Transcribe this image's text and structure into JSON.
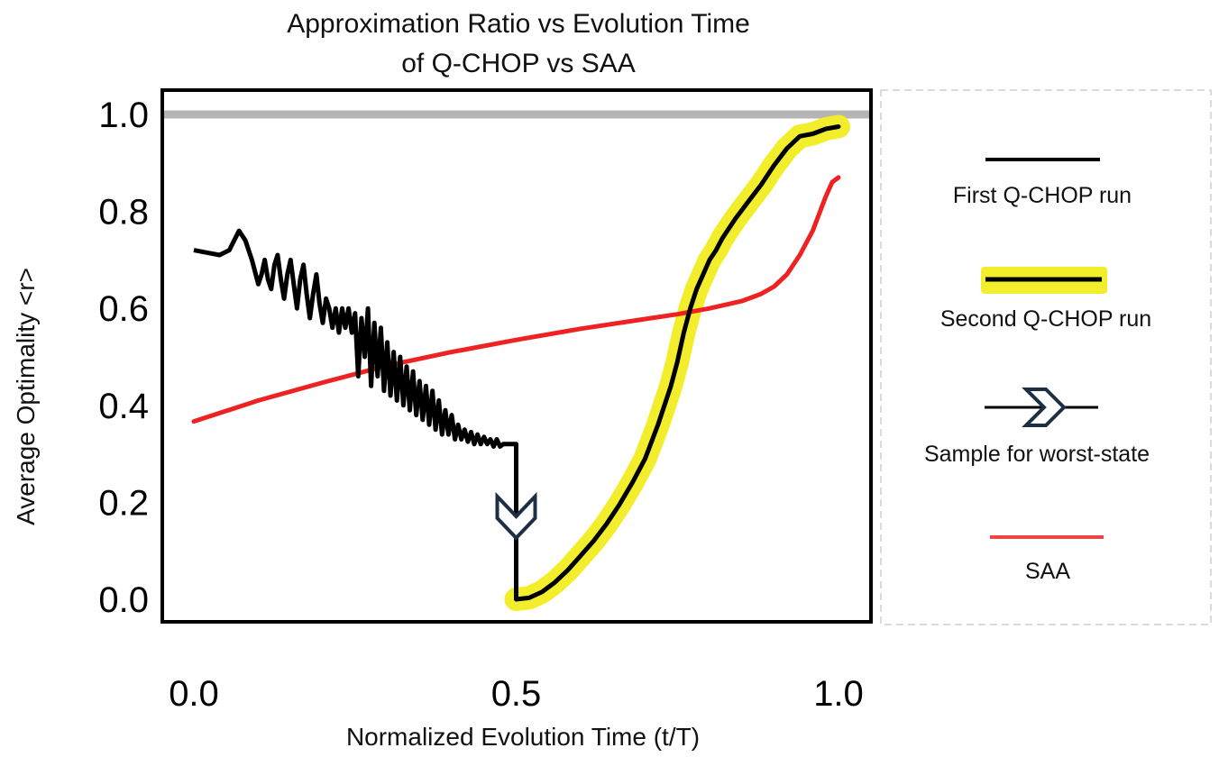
{
  "chart_data": {
    "type": "line",
    "title": [
      "Approximation Ratio vs Evolution Time",
      "of Q-CHOP vs SAA"
    ],
    "xlabel": "Normalized Evolution Time (t/T)",
    "ylabel": "Average Optimality <r>",
    "xlim": [
      0.0,
      1.0
    ],
    "ylim": [
      0.0,
      1.0
    ],
    "xticks": [
      "0.0",
      "0.5",
      "1.0"
    ],
    "xtick_values": [
      0.0,
      0.5,
      1.0
    ],
    "yticks": [
      "0.0",
      "0.2",
      "0.4",
      "0.6",
      "0.8",
      "1.0"
    ],
    "ytick_values": [
      0.0,
      0.2,
      0.4,
      0.6,
      0.8,
      1.0
    ],
    "reference_line": {
      "y": 1.0,
      "color": "#b4b4b4"
    },
    "annotation": {
      "name": "Sample for worst-state",
      "x": 0.5,
      "y": 0.16
    },
    "series": [
      {
        "name": "First Q-CHOP run",
        "color": "#000000",
        "x": [
          0.0,
          0.02,
          0.04,
          0.055,
          0.07,
          0.08,
          0.09,
          0.1,
          0.105,
          0.11,
          0.115,
          0.12,
          0.125,
          0.13,
          0.135,
          0.14,
          0.145,
          0.15,
          0.155,
          0.16,
          0.165,
          0.17,
          0.175,
          0.18,
          0.185,
          0.19,
          0.195,
          0.2,
          0.205,
          0.21,
          0.215,
          0.22,
          0.225,
          0.23,
          0.235,
          0.24,
          0.245,
          0.25,
          0.255,
          0.26,
          0.265,
          0.27,
          0.275,
          0.28,
          0.285,
          0.29,
          0.295,
          0.3,
          0.305,
          0.31,
          0.315,
          0.32,
          0.325,
          0.33,
          0.335,
          0.34,
          0.345,
          0.35,
          0.355,
          0.36,
          0.365,
          0.37,
          0.375,
          0.38,
          0.385,
          0.39,
          0.395,
          0.4,
          0.405,
          0.41,
          0.415,
          0.42,
          0.425,
          0.43,
          0.435,
          0.44,
          0.445,
          0.45,
          0.455,
          0.46,
          0.465,
          0.47,
          0.475,
          0.48,
          0.485,
          0.49,
          0.495,
          0.5,
          0.5
        ],
        "values": [
          0.72,
          0.715,
          0.71,
          0.72,
          0.76,
          0.74,
          0.7,
          0.65,
          0.67,
          0.7,
          0.66,
          0.64,
          0.69,
          0.71,
          0.66,
          0.62,
          0.67,
          0.7,
          0.65,
          0.6,
          0.66,
          0.69,
          0.63,
          0.58,
          0.63,
          0.67,
          0.61,
          0.57,
          0.62,
          0.6,
          0.56,
          0.6,
          0.55,
          0.6,
          0.56,
          0.6,
          0.55,
          0.59,
          0.46,
          0.58,
          0.5,
          0.6,
          0.44,
          0.57,
          0.46,
          0.56,
          0.43,
          0.53,
          0.42,
          0.51,
          0.41,
          0.5,
          0.4,
          0.48,
          0.39,
          0.47,
          0.38,
          0.45,
          0.37,
          0.44,
          0.36,
          0.43,
          0.35,
          0.41,
          0.34,
          0.39,
          0.34,
          0.38,
          0.33,
          0.36,
          0.33,
          0.35,
          0.325,
          0.345,
          0.32,
          0.34,
          0.32,
          0.335,
          0.32,
          0.33,
          0.315,
          0.33,
          0.315,
          0.32,
          0.32,
          0.32,
          0.32,
          0.32,
          0.0
        ]
      },
      {
        "name": "Second Q-CHOP run",
        "color": "#000000",
        "highlight": "#f2ee2c",
        "x": [
          0.5,
          0.52,
          0.54,
          0.56,
          0.58,
          0.6,
          0.62,
          0.64,
          0.66,
          0.68,
          0.7,
          0.72,
          0.74,
          0.75,
          0.76,
          0.77,
          0.78,
          0.79,
          0.8,
          0.81,
          0.82,
          0.84,
          0.86,
          0.88,
          0.9,
          0.92,
          0.94,
          0.96,
          0.98,
          1.0
        ],
        "values": [
          0.0,
          0.003,
          0.015,
          0.035,
          0.06,
          0.09,
          0.12,
          0.155,
          0.195,
          0.24,
          0.29,
          0.36,
          0.44,
          0.49,
          0.55,
          0.6,
          0.64,
          0.67,
          0.7,
          0.72,
          0.745,
          0.785,
          0.82,
          0.855,
          0.895,
          0.93,
          0.955,
          0.96,
          0.97,
          0.975
        ]
      },
      {
        "name": "SAA",
        "color": "#ee2222",
        "x": [
          0.0,
          0.1,
          0.2,
          0.3,
          0.4,
          0.5,
          0.6,
          0.7,
          0.75,
          0.8,
          0.85,
          0.88,
          0.9,
          0.92,
          0.94,
          0.96,
          0.98,
          0.99,
          1.0
        ],
        "values": [
          0.367,
          0.41,
          0.447,
          0.482,
          0.51,
          0.535,
          0.558,
          0.578,
          0.588,
          0.6,
          0.615,
          0.63,
          0.645,
          0.67,
          0.71,
          0.76,
          0.83,
          0.86,
          0.87
        ]
      }
    ]
  },
  "legend": {
    "entries": [
      {
        "label": "First Q-CHOP run",
        "style": "line"
      },
      {
        "label": "Second Q-CHOP run",
        "style": "highlighted-line"
      },
      {
        "label": "Sample for worst-state",
        "style": "chevron-arrow"
      },
      {
        "label": "SAA",
        "style": "red-line"
      }
    ]
  }
}
